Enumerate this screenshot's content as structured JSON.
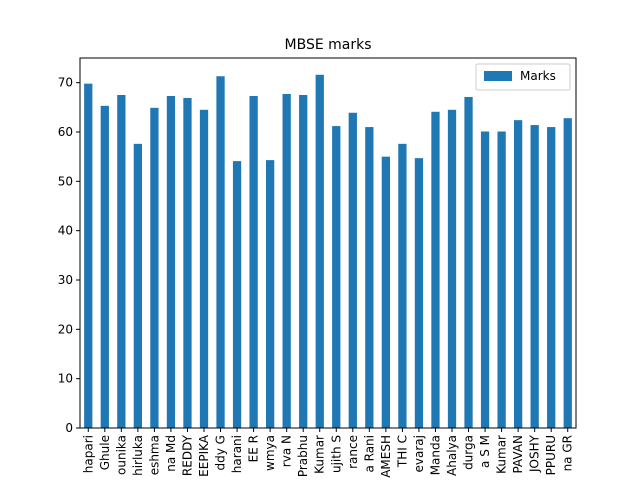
{
  "chart_data": {
    "type": "bar",
    "title": "MBSE marks",
    "xlabel": "",
    "ylabel": "",
    "ylim": [
      0,
      75
    ],
    "yticks": [
      0,
      10,
      20,
      30,
      40,
      50,
      60,
      70
    ],
    "grid": false,
    "legend_position": "upper-right",
    "bar_color": "#1f77b4",
    "categories": [
      "hapari",
      "Ghule",
      "ounika",
      "hirluka",
      "eshma",
      "na  Md",
      "REDDY",
      "EEPIKA",
      "ddy G",
      "harani",
      "EE  R",
      "wmya",
      "rva  N",
      "Prabhu",
      "Kumar",
      "ujith  S",
      "rance",
      "a  Rani",
      "AMESH",
      "THI  C",
      "evaraj",
      "Manda",
      "Ahalya",
      "durga",
      "a  S  M",
      "Kumar",
      "PAVAN",
      "JOSHY",
      "PPURU",
      "na  GR"
    ],
    "series": [
      {
        "name": "Marks",
        "values": [
          69.8,
          65.3,
          67.5,
          57.6,
          64.9,
          67.3,
          66.9,
          64.5,
          71.3,
          54.1,
          67.3,
          54.3,
          67.7,
          67.5,
          71.6,
          61.2,
          63.9,
          61.0,
          55.0,
          57.6,
          54.7,
          64.1,
          64.5,
          67.1,
          60.1,
          60.1,
          62.4,
          61.4,
          61.0,
          62.8
        ]
      }
    ]
  }
}
